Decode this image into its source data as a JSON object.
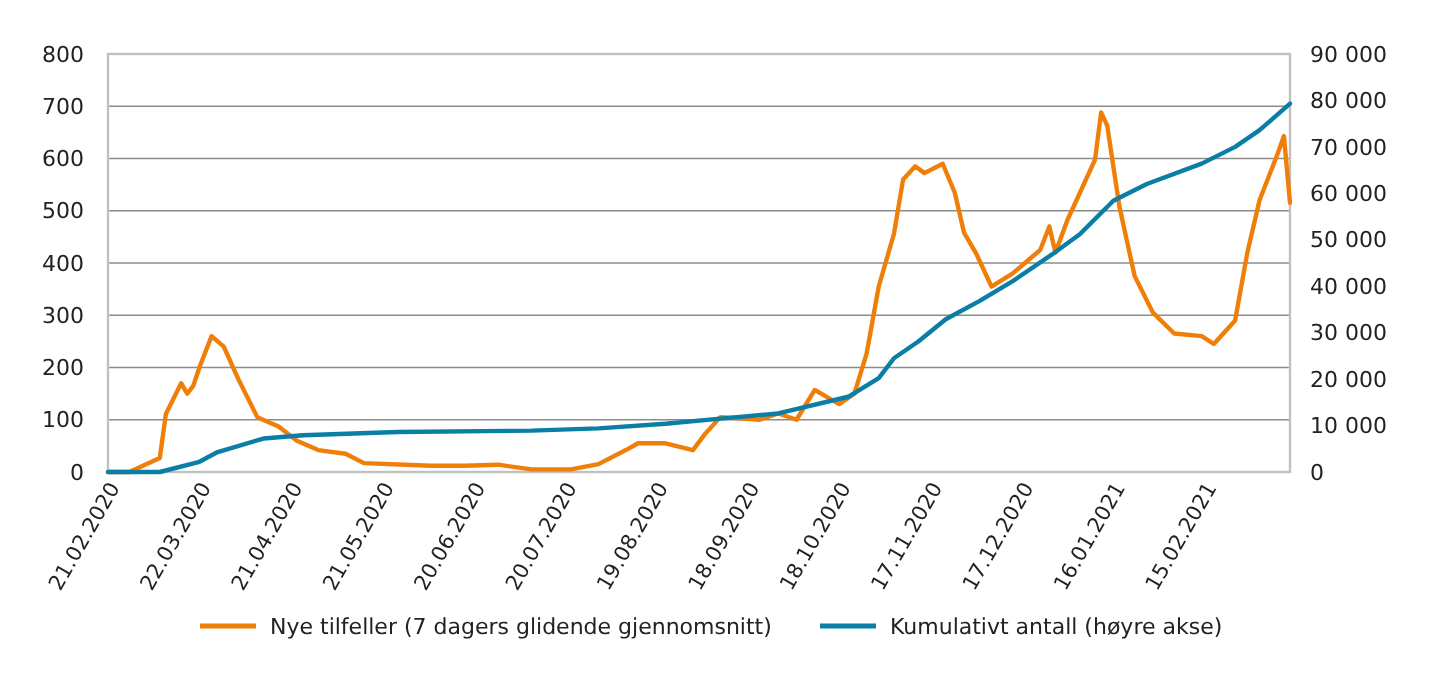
{
  "chart_data": {
    "type": "line",
    "series": [
      {
        "name": "Nye tilfeller (7 dagers glidende gjennomsnitt)",
        "color": "#f07f09",
        "x": [
          "2020-02-21",
          "2020-02-28",
          "2020-03-09",
          "2020-03-11",
          "2020-03-16",
          "2020-03-18",
          "2020-03-20",
          "2020-03-22",
          "2020-03-26",
          "2020-03-30",
          "2020-04-04",
          "2020-04-10",
          "2020-04-17",
          "2020-04-23",
          "2020-04-30",
          "2020-05-09",
          "2020-05-15",
          "2020-06-06",
          "2020-06-17",
          "2020-06-28",
          "2020-07-09",
          "2020-07-22",
          "2020-07-31",
          "2020-08-09",
          "2020-08-13",
          "2020-08-22",
          "2020-08-31",
          "2020-09-04",
          "2020-09-09",
          "2020-09-22",
          "2020-09-28",
          "2020-10-04",
          "2020-10-10",
          "2020-10-18",
          "2020-10-23",
          "2020-10-27",
          "2020-10-31",
          "2020-11-05",
          "2020-11-08",
          "2020-11-12",
          "2020-11-15",
          "2020-11-21",
          "2020-11-25",
          "2020-11-28",
          "2020-12-02",
          "2020-12-07",
          "2020-12-14",
          "2020-12-18",
          "2020-12-23",
          "2020-12-26",
          "2020-12-28",
          "2021-01-01",
          "2021-01-05",
          "2021-01-10",
          "2021-01-12",
          "2021-01-14",
          "2021-01-18",
          "2021-01-23",
          "2021-01-29",
          "2021-02-05",
          "2021-02-14",
          "2021-02-18",
          "2021-02-25",
          "2021-03-01",
          "2021-03-05",
          "2021-03-11",
          "2021-03-13",
          "2021-03-15"
        ],
        "values": [
          0,
          0,
          27,
          111,
          170,
          150,
          165,
          200,
          260,
          240,
          175,
          105,
          87,
          60,
          42,
          35,
          17,
          12,
          12,
          14,
          5,
          5,
          15,
          42,
          55,
          55,
          42,
          73,
          105,
          100,
          112,
          100,
          157,
          130,
          150,
          226,
          355,
          456,
          560,
          585,
          572,
          590,
          534,
          458,
          418,
          355,
          380,
          400,
          425,
          470,
          420,
          483,
          534,
          598,
          688,
          663,
          508,
          375,
          305,
          265,
          260,
          245,
          290,
          420,
          520,
          610,
          643,
          515
        ]
      },
      {
        "name": "Kumulativt antall (høyre akse)",
        "color": "#0a7ea4",
        "axis": "y2",
        "x": [
          "2020-02-21",
          "2020-03-09",
          "2020-03-22",
          "2020-03-28",
          "2020-04-12",
          "2020-04-25",
          "2020-05-26",
          "2020-07-09",
          "2020-07-31",
          "2020-08-22",
          "2020-09-09",
          "2020-09-28",
          "2020-10-21",
          "2020-10-31",
          "2020-11-05",
          "2020-11-13",
          "2020-11-22",
          "2020-12-03",
          "2020-12-14",
          "2020-12-27",
          "2021-01-05",
          "2021-01-16",
          "2021-01-27",
          "2021-02-14",
          "2021-02-25",
          "2021-03-05",
          "2021-03-15"
        ],
        "values": [
          0,
          0,
          2200,
          4300,
          7200,
          7900,
          8600,
          8900,
          9400,
          10400,
          11500,
          12600,
          16200,
          20200,
          24500,
          28100,
          32900,
          36800,
          41100,
          46900,
          51200,
          58400,
          62000,
          66400,
          70000,
          73600,
          79300
        ]
      }
    ],
    "xlim": [
      "2020-02-21",
      "2021-03-15"
    ],
    "xticks": [
      {
        "value": "2020-02-21",
        "label": "21.02.2020"
      },
      {
        "value": "2020-03-22",
        "label": "22.03.2020"
      },
      {
        "value": "2020-04-21",
        "label": "21.04.2020"
      },
      {
        "value": "2020-05-21",
        "label": "21.05.2020"
      },
      {
        "value": "2020-06-20",
        "label": "20.06.2020"
      },
      {
        "value": "2020-07-20",
        "label": "20.07.2020"
      },
      {
        "value": "2020-08-19",
        "label": "19.08.2020"
      },
      {
        "value": "2020-09-18",
        "label": "18.09.2020"
      },
      {
        "value": "2020-10-18",
        "label": "18.10.2020"
      },
      {
        "value": "2020-11-17",
        "label": "17.11.2020"
      },
      {
        "value": "2020-12-17",
        "label": "17.12.2020"
      },
      {
        "value": "2021-01-16",
        "label": "16.01.2021"
      },
      {
        "value": "2021-02-15",
        "label": "15.02.2021"
      }
    ],
    "ylim": [
      0,
      800
    ],
    "yticks": [
      0,
      100,
      200,
      300,
      400,
      500,
      600,
      700,
      800
    ],
    "y2lim": [
      0,
      90000
    ],
    "y2ticks": [
      0,
      {
        "value": 10000,
        "label": "10 000"
      },
      {
        "value": 20000,
        "label": "20 000"
      },
      {
        "value": 30000,
        "label": "30 000"
      },
      {
        "value": 40000,
        "label": "40 000"
      },
      {
        "value": 50000,
        "label": "50 000"
      },
      {
        "value": 60000,
        "label": "60 000"
      },
      {
        "value": 70000,
        "label": "70 000"
      },
      {
        "value": 80000,
        "label": "80 000"
      },
      {
        "value": 90000,
        "label": "90 000"
      }
    ],
    "grid": "y",
    "legend": "bottom"
  }
}
